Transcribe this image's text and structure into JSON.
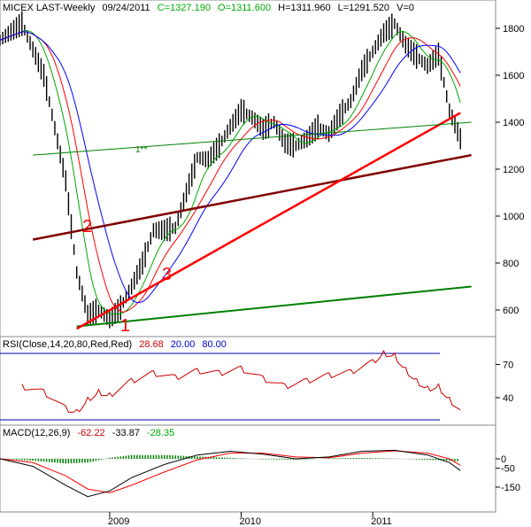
{
  "header": {
    "symbol": "MICEX LAST-Weekly",
    "date": "09/24/2011",
    "close": "C=1327.190",
    "open": "O=1311.600",
    "high": "H=1311.960",
    "low": "L=1291.520",
    "volume": "V=0"
  },
  "rsi_header": {
    "label": "RSI(Close,14,20,80,Red,Red)",
    "value": "28.68",
    "low": "20.00",
    "high": "80.00"
  },
  "macd_header": {
    "label": "MACD(12,26,9)",
    "macd": "-62.22",
    "signal": "-33.87",
    "hist": "-28.35"
  },
  "colors": {
    "price": "#000000",
    "ma_short": "#ff0000",
    "ma_mid": "#00aa00",
    "ma_long": "#0000ff",
    "trend1": "#008000",
    "trend2": "#800000",
    "trend3": "#ff0000",
    "thin_trend": "#008000",
    "rsi": "#cc0000",
    "rsi_bounds": "#0000aa",
    "macd": "#000000",
    "signal": "#ff0000",
    "hist": "#008000"
  },
  "annotations": {
    "line1": "1",
    "line2": "2",
    "line3": "3",
    "thin": "1**"
  },
  "chart_data": [
    {
      "type": "line",
      "title": "MICEX LAST-Weekly",
      "x_ticks": [
        "2009",
        "2010",
        "2011"
      ],
      "y_ticks": [
        600,
        800,
        1000,
        1200,
        1400,
        1600,
        1800
      ],
      "ylim": [
        500,
        1880
      ],
      "series": [
        {
          "x": [
            "2008-03",
            "2008-05",
            "2008-07",
            "2008-09",
            "2008-10",
            "2008-11",
            "2008-12",
            "2009-01",
            "2009-02",
            "2009-03",
            "2009-04",
            "2009-05",
            "2009-06",
            "2009-07",
            "2009-08",
            "2009-09",
            "2009-10",
            "2009-11",
            "2009-12",
            "2010-01",
            "2010-02",
            "2010-03",
            "2010-04",
            "2010-05",
            "2010-06",
            "2010-07",
            "2010-08",
            "2010-09",
            "2010-10",
            "2010-11",
            "2010-12",
            "2011-01",
            "2011-02",
            "2011-03",
            "2011-04",
            "2011-05",
            "2011-06",
            "2011-07",
            "2011-08",
            "2011-09"
          ],
          "values": [
            1750,
            1820,
            1600,
            1150,
            760,
            580,
            600,
            560,
            610,
            700,
            800,
            940,
            940,
            950,
            1100,
            1250,
            1240,
            1300,
            1380,
            1450,
            1420,
            1370,
            1400,
            1310,
            1300,
            1330,
            1380,
            1350,
            1430,
            1490,
            1620,
            1700,
            1780,
            1820,
            1730,
            1680,
            1640,
            1690,
            1450,
            1330
          ]
        }
      ],
      "trend_lines": [
        {
          "label": "1",
          "from": [
            "2008-10",
            530
          ],
          "to": [
            "2011-10",
            700
          ]
        },
        {
          "label": "2",
          "from": [
            "2008-06",
            900
          ],
          "to": [
            "2011-10",
            1260
          ]
        },
        {
          "label": "3",
          "from": [
            "2008-10",
            520
          ],
          "to": [
            "2011-09",
            1440
          ]
        },
        {
          "label": "1**",
          "from": [
            "2008-06",
            1260
          ],
          "to": [
            "2011-10",
            1400
          ]
        }
      ]
    },
    {
      "type": "line",
      "title": "RSI(Close,14,20,80,Red,Red)",
      "y_ticks": [
        40,
        70
      ],
      "reference_lines": [
        20,
        80
      ],
      "series": [
        {
          "x": [
            "2008-05",
            "2008-07",
            "2008-09",
            "2008-10",
            "2008-11",
            "2008-12",
            "2009-01",
            "2009-03",
            "2009-05",
            "2009-07",
            "2009-09",
            "2009-11",
            "2010-01",
            "2010-03",
            "2010-05",
            "2010-07",
            "2010-09",
            "2010-11",
            "2011-01",
            "2011-02",
            "2011-03",
            "2011-04",
            "2011-05",
            "2011-06",
            "2011-07",
            "2011-08",
            "2011-09"
          ],
          "values": [
            50,
            45,
            30,
            27,
            38,
            45,
            42,
            55,
            62,
            58,
            64,
            62,
            66,
            57,
            50,
            55,
            60,
            63,
            72,
            80,
            78,
            65,
            55,
            48,
            50,
            38,
            29
          ]
        }
      ]
    },
    {
      "type": "line",
      "title": "MACD(12,26,9)",
      "y_ticks": [
        -150,
        -50,
        0
      ],
      "series": [
        {
          "name": "MACD",
          "x": [
            "2008-03",
            "2008-06",
            "2008-09",
            "2008-11",
            "2009-01",
            "2009-03",
            "2009-06",
            "2009-09",
            "2009-12",
            "2010-03",
            "2010-06",
            "2010-09",
            "2010-12",
            "2011-03",
            "2011-06",
            "2011-08",
            "2011-09"
          ],
          "values": [
            0,
            -40,
            -140,
            -200,
            -170,
            -100,
            -30,
            20,
            40,
            25,
            0,
            10,
            40,
            45,
            20,
            -20,
            -62
          ]
        },
        {
          "name": "Signal",
          "x": [
            "2008-03",
            "2008-06",
            "2008-09",
            "2008-11",
            "2009-01",
            "2009-03",
            "2009-06",
            "2009-09",
            "2009-12",
            "2010-03",
            "2010-06",
            "2010-09",
            "2010-12",
            "2011-03",
            "2011-06",
            "2011-08",
            "2011-09"
          ],
          "values": [
            0,
            -20,
            -90,
            -160,
            -180,
            -140,
            -70,
            -5,
            30,
            30,
            10,
            5,
            30,
            42,
            30,
            0,
            -34
          ]
        }
      ]
    }
  ]
}
